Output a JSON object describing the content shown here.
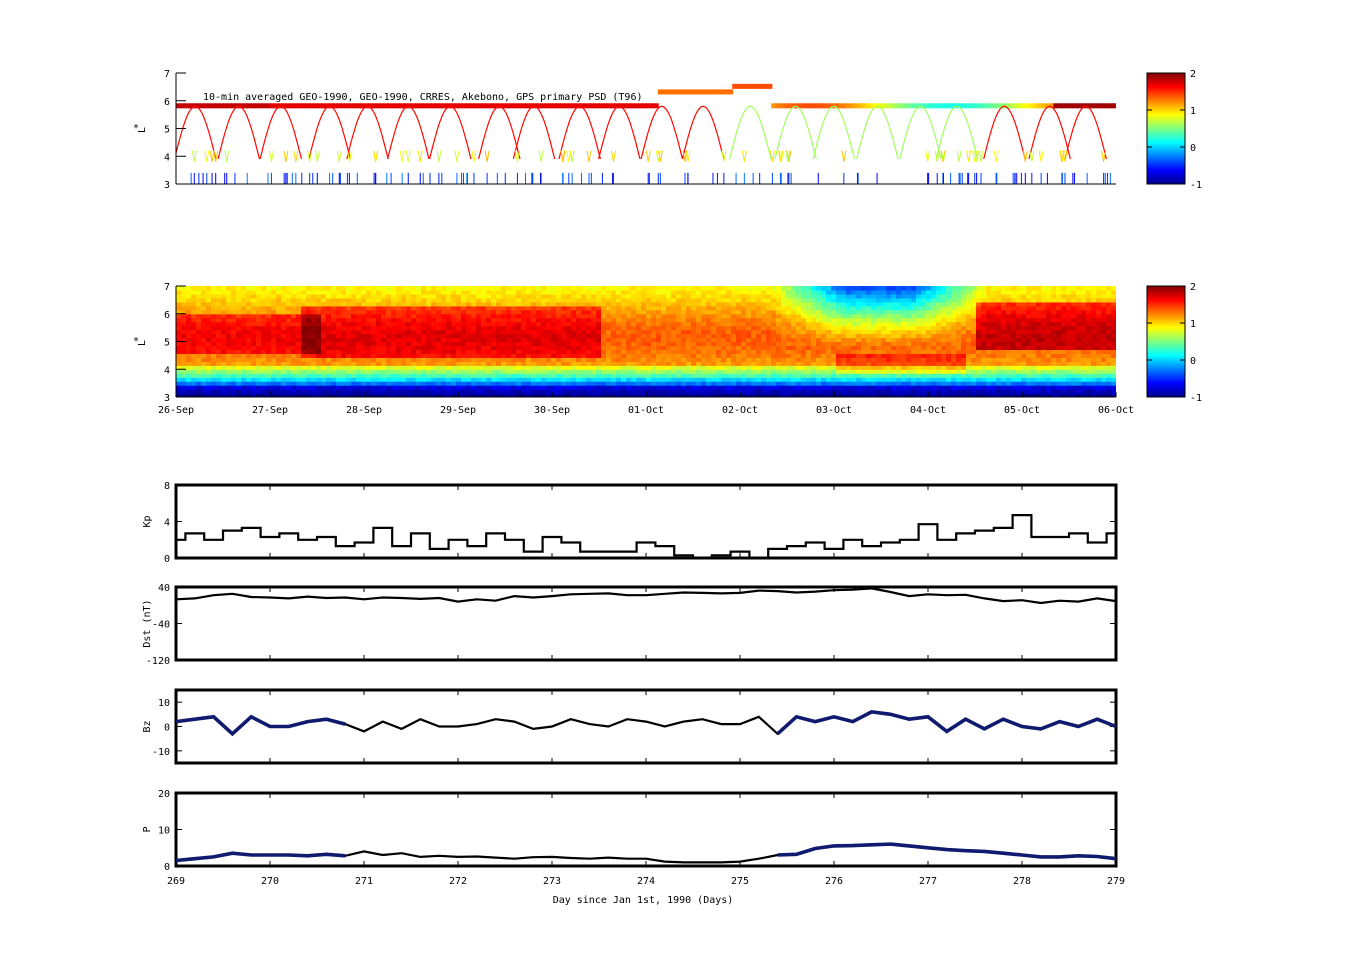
{
  "chart_data": [
    {
      "type": "heatmap",
      "panel": "psd-observed",
      "title": "10-min averaged GEO-1990, GEO-1990, CRRES, Akebono, GPS  primary PSD (T96)",
      "ylabel": "L*",
      "ylim": [
        3,
        7
      ],
      "yticks": [
        "3",
        "4",
        "5",
        "6",
        "7"
      ],
      "colorbar": {
        "ticks": [
          "-1",
          "0",
          "1",
          "2"
        ],
        "range": [
          -1,
          2
        ]
      },
      "grid": false,
      "values_description": "sparse satellite tracks"
    },
    {
      "type": "heatmap",
      "panel": "psd-reanalysis",
      "ylabel": "L*",
      "ylim": [
        3,
        7
      ],
      "yticks": [
        "3",
        "4",
        "5",
        "6",
        "7"
      ],
      "xticks": [
        "26-Sep",
        "27-Sep",
        "28-Sep",
        "29-Sep",
        "30-Sep",
        "01-Oct",
        "02-Oct",
        "03-Oct",
        "04-Oct",
        "05-Oct",
        "06-Oct"
      ],
      "colorbar": {
        "ticks": [
          "-1",
          "0",
          "1",
          "2"
        ],
        "range": [
          -1,
          2
        ]
      },
      "grid": false
    },
    {
      "type": "line",
      "panel": "kp",
      "ylabel": "Kp",
      "ylim": [
        0,
        8
      ],
      "yticks": [
        "0",
        "4",
        "8"
      ],
      "x": [
        269.0,
        269.1,
        269.3,
        269.5,
        269.7,
        269.9,
        270.1,
        270.3,
        270.5,
        270.7,
        270.9,
        271.1,
        271.3,
        271.5,
        271.7,
        271.9,
        272.1,
        272.3,
        272.5,
        272.7,
        272.9,
        273.1,
        273.3,
        273.5,
        273.7,
        273.9,
        274.1,
        274.3,
        274.5,
        274.7,
        274.9,
        275.1,
        275.3,
        275.5,
        275.7,
        275.9,
        276.1,
        276.3,
        276.5,
        276.7,
        276.9,
        277.1,
        277.3,
        277.5,
        277.7,
        277.9,
        278.1,
        278.3,
        278.5,
        278.7,
        278.9,
        279.0
      ],
      "values": [
        2.0,
        2.7,
        2.0,
        3.0,
        3.3,
        2.3,
        2.7,
        2.0,
        2.3,
        1.3,
        1.7,
        3.3,
        1.3,
        2.7,
        1.0,
        2.0,
        1.3,
        2.7,
        2.0,
        0.7,
        2.3,
        1.7,
        0.7,
        0.7,
        0.7,
        1.7,
        1.3,
        0.3,
        0.0,
        0.3,
        0.7,
        0.0,
        1.0,
        1.3,
        1.7,
        1.0,
        2.0,
        1.3,
        1.7,
        2.0,
        3.7,
        2.0,
        2.7,
        3.0,
        3.3,
        4.7,
        2.3,
        2.3,
        2.7,
        1.7,
        2.7,
        3.0
      ],
      "xlim": [
        269,
        279
      ]
    },
    {
      "type": "line",
      "panel": "dst",
      "ylabel": "Dst (nT)",
      "ylim": [
        -120,
        40
      ],
      "yticks": [
        "-120",
        "-40",
        "40"
      ],
      "x": [
        269.0,
        269.2,
        269.4,
        269.6,
        269.8,
        270.0,
        270.2,
        270.4,
        270.6,
        270.8,
        271.0,
        271.2,
        271.4,
        271.6,
        271.8,
        272.0,
        272.2,
        272.4,
        272.6,
        272.8,
        273.0,
        273.2,
        273.4,
        273.6,
        273.8,
        274.0,
        274.2,
        274.4,
        274.6,
        274.8,
        275.0,
        275.2,
        275.4,
        275.6,
        275.8,
        276.0,
        276.2,
        276.4,
        276.6,
        276.8,
        277.0,
        277.2,
        277.4,
        277.6,
        277.8,
        278.0,
        278.2,
        278.4,
        278.6,
        278.8,
        279.0
      ],
      "values": [
        13,
        15,
        22,
        25,
        18,
        17,
        15,
        19,
        16,
        17,
        13,
        17,
        16,
        14,
        16,
        8,
        13,
        10,
        20,
        17,
        20,
        24,
        25,
        26,
        22,
        22,
        25,
        28,
        27,
        26,
        27,
        32,
        31,
        28,
        30,
        33,
        34,
        37,
        29,
        20,
        24,
        22,
        23,
        15,
        9,
        11,
        5,
        10,
        8,
        15,
        9
      ],
      "xlim": [
        269,
        279
      ]
    },
    {
      "type": "line",
      "panel": "bz",
      "ylabel": "Bz",
      "ylim": [
        -15,
        15
      ],
      "yticks": [
        "-10",
        "0",
        "10"
      ],
      "x": [
        269.0,
        269.2,
        269.4,
        269.6,
        269.8,
        270.0,
        270.2,
        270.4,
        270.6,
        270.8,
        271.0,
        271.2,
        271.4,
        271.6,
        271.8,
        272.0,
        272.2,
        272.4,
        272.6,
        272.8,
        273.0,
        273.2,
        273.4,
        273.6,
        273.8,
        274.0,
        274.2,
        274.4,
        274.6,
        274.8,
        275.0,
        275.2,
        275.4,
        275.6,
        275.8,
        276.0,
        276.2,
        276.4,
        276.6,
        276.8,
        277.0,
        277.2,
        277.4,
        277.6,
        277.8,
        278.0,
        278.2,
        278.4,
        278.6,
        278.8,
        279.0
      ],
      "values": [
        2,
        3,
        4,
        -3,
        4,
        0,
        0,
        2,
        3,
        1,
        -2,
        2,
        -1,
        3,
        0,
        0,
        1,
        3,
        2,
        -1,
        0,
        3,
        1,
        0,
        3,
        2,
        0,
        2,
        3,
        1,
        1,
        4,
        -3,
        4,
        2,
        4,
        2,
        6,
        5,
        3,
        4,
        -2,
        3,
        -1,
        3,
        0,
        -1,
        2,
        0,
        3,
        0
      ],
      "xlim": [
        269,
        279
      ]
    },
    {
      "type": "line",
      "panel": "pdyn",
      "ylabel": "P",
      "ylim": [
        0,
        20
      ],
      "yticks": [
        "0",
        "10",
        "20"
      ],
      "x": [
        269.0,
        269.2,
        269.4,
        269.6,
        269.8,
        270.0,
        270.2,
        270.4,
        270.6,
        270.8,
        271.0,
        271.2,
        271.4,
        271.6,
        271.8,
        272.0,
        272.2,
        272.4,
        272.6,
        272.8,
        273.0,
        273.2,
        273.4,
        273.6,
        273.8,
        274.0,
        274.2,
        274.4,
        274.6,
        274.8,
        275.0,
        275.2,
        275.4,
        275.6,
        275.8,
        276.0,
        276.2,
        276.4,
        276.6,
        276.8,
        277.0,
        277.2,
        277.4,
        277.6,
        277.8,
        278.0,
        278.2,
        278.4,
        278.6,
        278.8,
        279.0
      ],
      "values": [
        1.5,
        2.0,
        2.5,
        3.5,
        3.0,
        3.0,
        3.0,
        2.8,
        3.2,
        2.8,
        4.0,
        3.0,
        3.5,
        2.5,
        2.8,
        2.5,
        2.6,
        2.3,
        2.0,
        2.4,
        2.5,
        2.2,
        2.0,
        2.3,
        2.0,
        2.0,
        1.2,
        1.0,
        1.0,
        1.0,
        1.2,
        2.0,
        3.0,
        3.2,
        4.8,
        5.5,
        5.6,
        5.8,
        6.0,
        5.5,
        5.0,
        4.5,
        4.2,
        4.0,
        3.5,
        3.0,
        2.5,
        2.5,
        2.8,
        2.6,
        2.0
      ],
      "xlim": [
        269,
        279
      ],
      "xlabel": "Day since Jan 1st, 1990 (Days)",
      "xticks": [
        "269",
        "270",
        "271",
        "272",
        "273",
        "274",
        "275",
        "276",
        "277",
        "278",
        "279"
      ]
    }
  ]
}
